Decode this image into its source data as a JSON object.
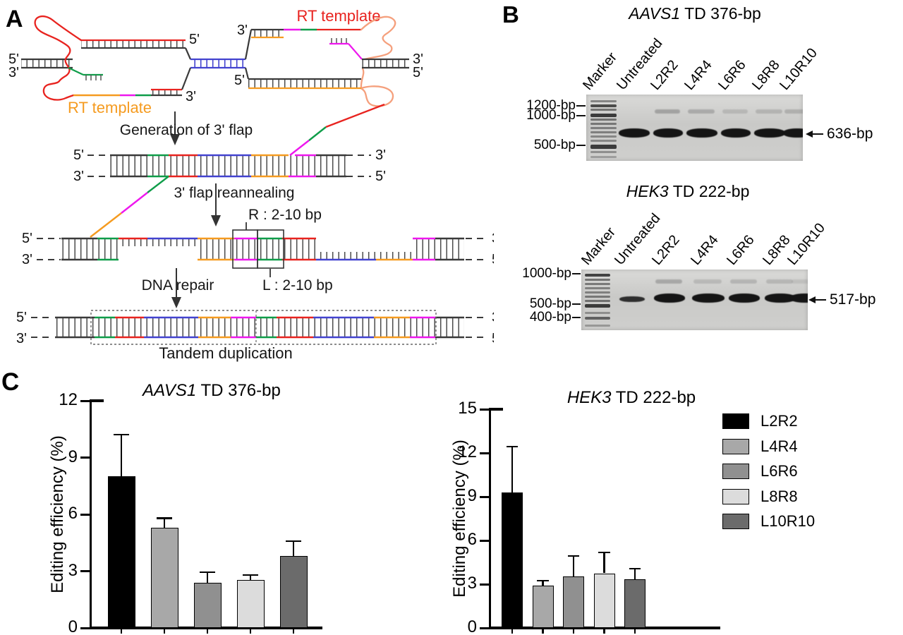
{
  "panels": {
    "a": "A",
    "b": "B",
    "c": "C"
  },
  "diagram": {
    "five_prime": "5'",
    "three_prime": "3'",
    "rt_template_left": "RT template",
    "rt_template_right": "RT template",
    "step_flap_generation": "Generation of 3' flap",
    "step_flap_reannealing": "3' flap reannealing",
    "step_dna_repair": "DNA repair",
    "r_label": "R :  2-10 bp",
    "l_label": "L :  2-10 bp",
    "tandem_label": "Tandem duplication",
    "colors": {
      "red": "#e8231f",
      "orange": "#f59b20",
      "green": "#0f9d49",
      "blue": "#4343cf",
      "magenta": "#ee17ee",
      "peach": "#f5a07d",
      "strand": "#3a3a3a"
    }
  },
  "gels": [
    {
      "title_gene": "AAVS1",
      "title_rest": " TD 376-bp",
      "lane_labels": [
        "Marker",
        "Untreated",
        "L2R2",
        "L4R4",
        "L6R6",
        "L8R8",
        "L10R10"
      ],
      "size_markers": [
        "1200-bp",
        "1000-bp",
        "500-bp"
      ],
      "band_annotation": "636-bp"
    },
    {
      "title_gene": "HEK3",
      "title_rest": " TD 222-bp",
      "lane_labels": [
        "Marker",
        "Untreated",
        "L2R2",
        "L4R4",
        "L6R6",
        "L8R8",
        "L10R10"
      ],
      "size_markers": [
        "1000-bp",
        "500-bp",
        "400-bp"
      ],
      "band_annotation": "517-bp"
    }
  ],
  "chart_data": [
    {
      "type": "bar",
      "title": "AAVS1 TD 376-bp",
      "title_gene": "AAVS1",
      "title_rest": " TD 376-bp",
      "ylabel": "Editing efficiency (%)",
      "categories": [
        "L2R2",
        "L4R4",
        "L6R6",
        "L8R8",
        "L10R10"
      ],
      "values": [
        8.0,
        5.3,
        2.4,
        2.55,
        3.8
      ],
      "errors": [
        2.2,
        0.5,
        0.55,
        0.25,
        0.8
      ],
      "ylim": [
        0,
        12
      ],
      "yticks": [
        0,
        3,
        6,
        9,
        12
      ],
      "grid": false,
      "legend_position": "none"
    },
    {
      "type": "bar",
      "title": "HEK3 TD 222-bp",
      "title_gene": "HEK3",
      "title_rest": " TD 222-bp",
      "ylabel": "Editing efficiency (%)",
      "categories": [
        "L2R2",
        "L4R4",
        "L6R6",
        "L8R8",
        "L10R10"
      ],
      "values": [
        9.3,
        2.9,
        3.55,
        3.75,
        3.35
      ],
      "errors": [
        3.15,
        0.35,
        1.4,
        1.45,
        0.7
      ],
      "ylim": [
        0,
        15
      ],
      "yticks": [
        0,
        3,
        6,
        9,
        12,
        15
      ],
      "grid": false,
      "legend_position": "right"
    }
  ],
  "legend": {
    "items": [
      {
        "label": "L2R2",
        "color": "#000000"
      },
      {
        "label": "L4R4",
        "color": "#a8a8a8"
      },
      {
        "label": "L6R6",
        "color": "#909090"
      },
      {
        "label": "L8R8",
        "color": "#dcdcdc"
      },
      {
        "label": "L10R10",
        "color": "#6b6b6b"
      }
    ]
  }
}
